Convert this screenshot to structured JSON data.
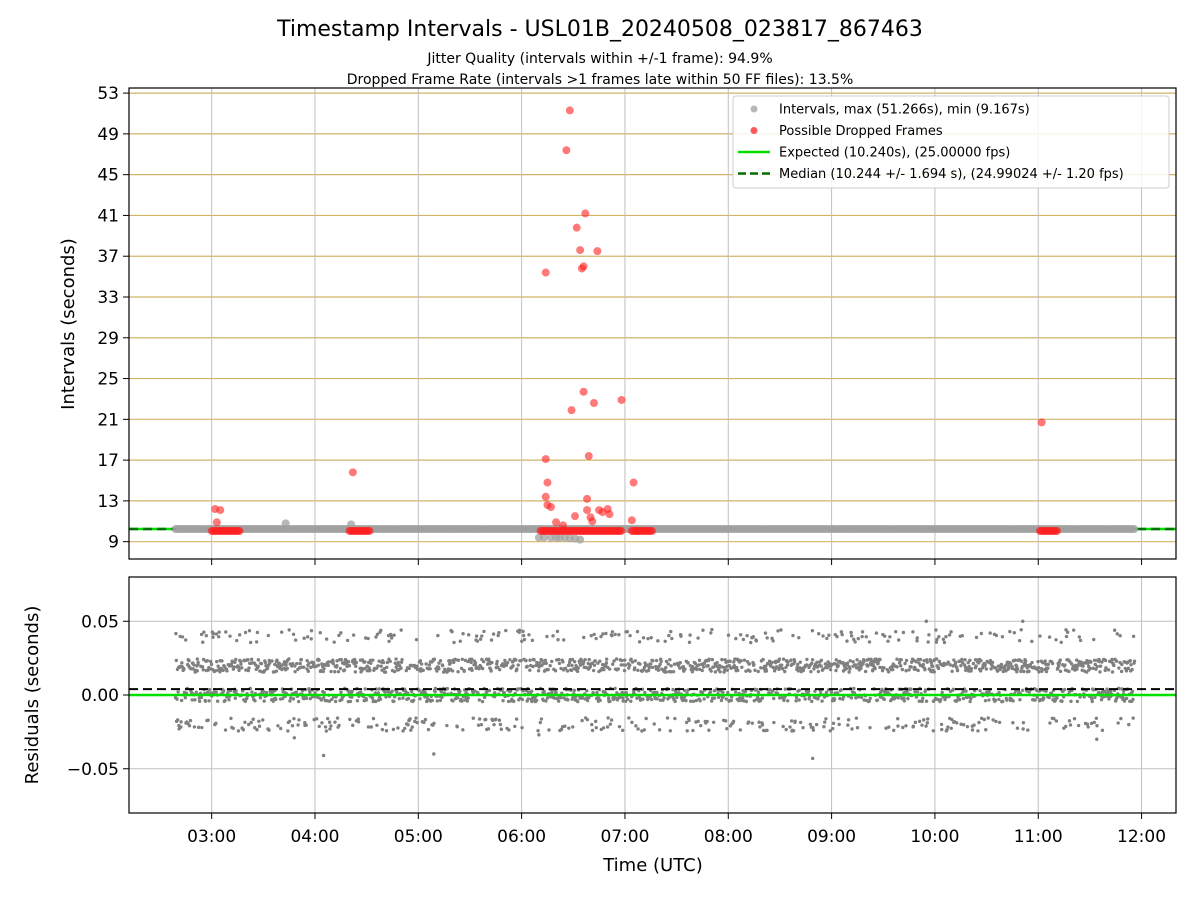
{
  "title": "Timestamp Intervals - USL01B_20240508_023817_867463",
  "subtitle_1": "Jitter Quality (intervals within +/-1 frame): 94.9%",
  "subtitle_2": "Dropped Frame Rate (intervals >1 frames late within 50 FF files): 13.5%",
  "colors": {
    "intervals": "#a0a0a0",
    "dropped": "#ff2020",
    "expected": "#00e000",
    "median": "#007000",
    "residual_points": "#808080",
    "hgrid_top": "#d2b469",
    "grid": "#c0c0c0"
  },
  "chart_data": [
    {
      "type": "scatter",
      "xlabel": "",
      "ylabel": "Intervals (seconds)",
      "xlim": [
        "02:12",
        "12:20"
      ],
      "ylim": [
        7.3,
        53.5
      ],
      "y_ticks": [
        9,
        13,
        17,
        21,
        25,
        29,
        33,
        37,
        41,
        45,
        49,
        53
      ],
      "x_ticks": [
        "03:00",
        "04:00",
        "05:00",
        "06:00",
        "07:00",
        "08:00",
        "09:00",
        "10:00",
        "11:00",
        "12:00"
      ],
      "grid": true,
      "legend_placement": "upper right",
      "legend": [
        {
          "label": "Intervals, max (51.266s), min (9.167s)",
          "kind": "marker",
          "color": "#a0a0a0"
        },
        {
          "label": "Possible Dropped Frames",
          "kind": "marker",
          "color": "#ff2020"
        },
        {
          "label": "Expected (10.240s), (25.00000 fps)",
          "kind": "line",
          "color": "#00e000"
        },
        {
          "label": "Median (10.244 +/- 1.694 s), (24.99024 +/- 1.20 fps)",
          "kind": "dashed",
          "color": "#007000"
        }
      ],
      "expected_interval": 10.24,
      "median_interval": 10.244,
      "baseline_time_range": [
        "02:39",
        "11:56"
      ],
      "intervals": [
        {
          "x": "03:43",
          "y": 10.8
        },
        {
          "x": "04:21",
          "y": 10.7
        },
        {
          "x": "06:10",
          "y": 9.4
        },
        {
          "x": "06:13",
          "y": 9.4
        },
        {
          "x": "06:17",
          "y": 9.4
        },
        {
          "x": "06:20",
          "y": 9.4
        },
        {
          "x": "06:22",
          "y": 9.4
        },
        {
          "x": "06:25",
          "y": 9.4
        },
        {
          "x": "06:28",
          "y": 9.35
        },
        {
          "x": "06:31",
          "y": 9.3
        },
        {
          "x": "06:34",
          "y": 9.2
        }
      ],
      "dropped_clusters": [
        {
          "from": "03:00",
          "to": "03:17"
        },
        {
          "from": "04:20",
          "to": "04:32"
        },
        {
          "from": "06:11",
          "to": "06:58"
        },
        {
          "from": "07:04",
          "to": "07:16"
        },
        {
          "from": "11:01",
          "to": "11:11"
        }
      ],
      "dropped_frames": [
        {
          "x": "03:02",
          "y": 12.2
        },
        {
          "x": "03:05",
          "y": 12.1
        },
        {
          "x": "03:03",
          "y": 10.9
        },
        {
          "x": "04:22",
          "y": 15.8
        },
        {
          "x": "06:14",
          "y": 35.4
        },
        {
          "x": "06:14",
          "y": 17.1
        },
        {
          "x": "06:14",
          "y": 13.4
        },
        {
          "x": "06:15",
          "y": 14.8
        },
        {
          "x": "06:15",
          "y": 12.6
        },
        {
          "x": "06:17",
          "y": 12.4
        },
        {
          "x": "06:20",
          "y": 10.9
        },
        {
          "x": "06:24",
          "y": 10.6
        },
        {
          "x": "06:26",
          "y": 47.4
        },
        {
          "x": "06:28",
          "y": 51.3
        },
        {
          "x": "06:29",
          "y": 21.9
        },
        {
          "x": "06:31",
          "y": 11.5
        },
        {
          "x": "06:32",
          "y": 39.8
        },
        {
          "x": "06:34",
          "y": 37.6
        },
        {
          "x": "06:35",
          "y": 35.8
        },
        {
          "x": "06:36",
          "y": 36.0
        },
        {
          "x": "06:36",
          "y": 23.7
        },
        {
          "x": "06:37",
          "y": 41.2
        },
        {
          "x": "06:38",
          "y": 13.2
        },
        {
          "x": "06:38",
          "y": 12.1
        },
        {
          "x": "06:39",
          "y": 17.4
        },
        {
          "x": "06:40",
          "y": 11.4
        },
        {
          "x": "06:41",
          "y": 11.0
        },
        {
          "x": "06:42",
          "y": 22.6
        },
        {
          "x": "06:44",
          "y": 37.5
        },
        {
          "x": "06:45",
          "y": 12.1
        },
        {
          "x": "06:47",
          "y": 11.9
        },
        {
          "x": "06:50",
          "y": 12.2
        },
        {
          "x": "06:51",
          "y": 11.7
        },
        {
          "x": "06:58",
          "y": 22.9
        },
        {
          "x": "07:04",
          "y": 11.1
        },
        {
          "x": "07:05",
          "y": 14.8
        },
        {
          "x": "11:02",
          "y": 20.7
        }
      ]
    },
    {
      "type": "scatter",
      "xlabel": "Time (UTC)",
      "ylabel": "Residuals (seconds)",
      "xlim": [
        "02:12",
        "12:20"
      ],
      "ylim": [
        -0.08,
        0.08
      ],
      "y_ticks": [
        -0.05,
        0.0,
        0.05
      ],
      "y_tick_labels": [
        "−0.05",
        "0.00",
        "0.05"
      ],
      "x_ticks": [
        "03:00",
        "04:00",
        "05:00",
        "06:00",
        "07:00",
        "08:00",
        "09:00",
        "10:00",
        "11:00",
        "12:00"
      ],
      "grid": true,
      "zero_line": 0.0,
      "median_offset": 0.004,
      "residual_bands": [
        -0.02,
        0.0,
        0.02,
        0.04
      ],
      "residual_time_range": [
        "02:39",
        "11:56"
      ],
      "outliers": [
        {
          "x": "04:05",
          "y": -0.041
        },
        {
          "x": "05:09",
          "y": -0.04
        },
        {
          "x": "08:49",
          "y": -0.043
        },
        {
          "x": "03:48",
          "y": -0.029
        },
        {
          "x": "10:51",
          "y": 0.05
        },
        {
          "x": "09:55",
          "y": 0.05
        },
        {
          "x": "06:10",
          "y": -0.027
        },
        {
          "x": "11:34",
          "y": -0.03
        }
      ]
    }
  ]
}
